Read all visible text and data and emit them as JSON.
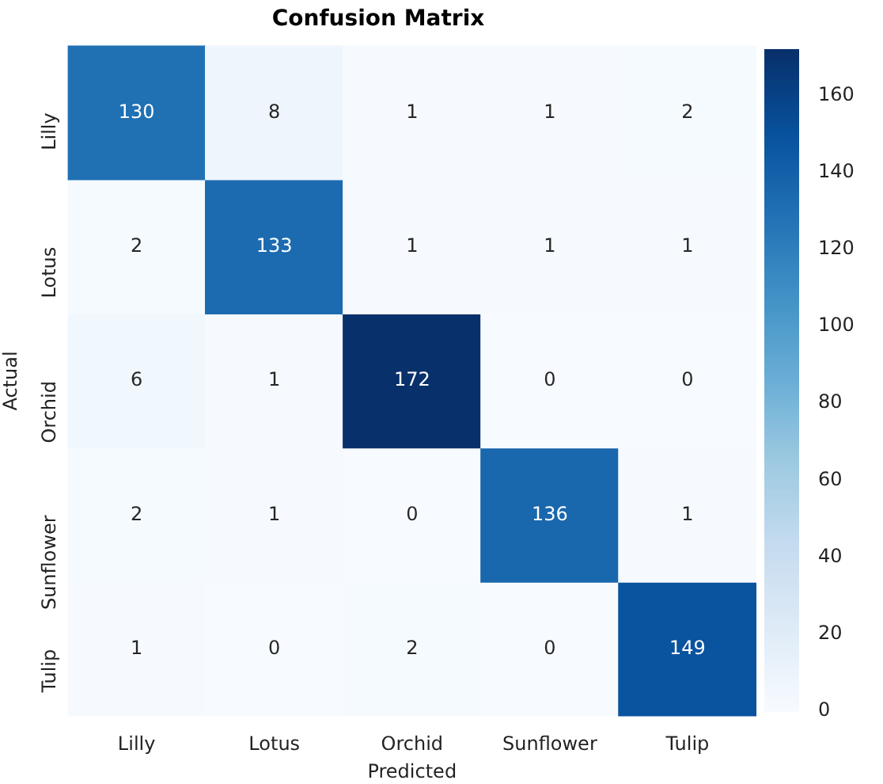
{
  "chart_data": {
    "type": "heatmap",
    "title": "Confusion Matrix",
    "xlabel": "Predicted",
    "ylabel": "Actual",
    "categories": [
      "Lilly",
      "Lotus",
      "Orchid",
      "Sunflower",
      "Tulip"
    ],
    "y_categories": [
      "Lilly",
      "Lotus",
      "Orchid",
      "Sunflower",
      "Tulip"
    ],
    "cells": [
      [
        130,
        8,
        1,
        1,
        2
      ],
      [
        2,
        133,
        1,
        1,
        1
      ],
      [
        6,
        1,
        172,
        0,
        0
      ],
      [
        2,
        1,
        0,
        136,
        1
      ],
      [
        1,
        0,
        2,
        0,
        149
      ]
    ],
    "data_labels": true,
    "clim": [
      0,
      172
    ],
    "cticks": [
      0,
      20,
      40,
      60,
      80,
      100,
      120,
      140,
      160
    ]
  }
}
